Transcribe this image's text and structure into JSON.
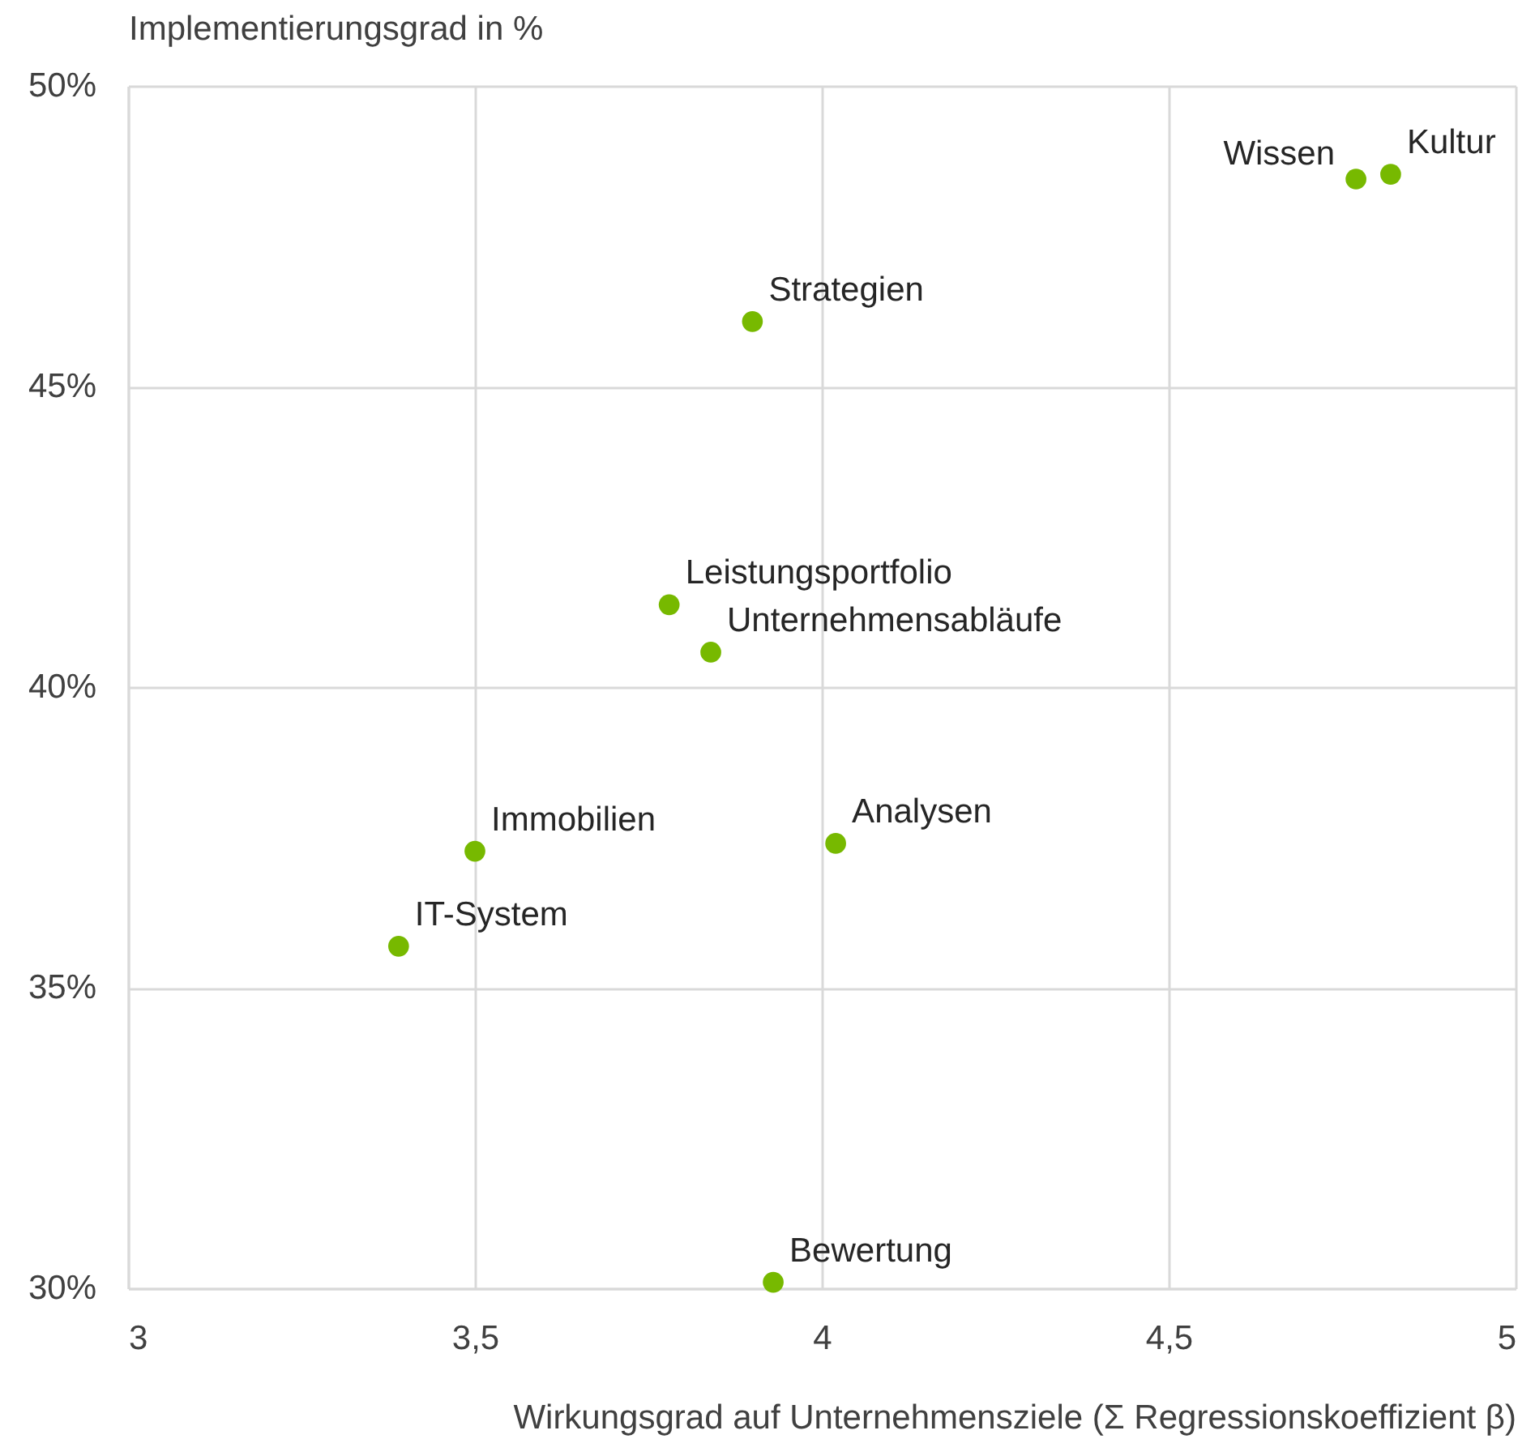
{
  "chart_data": {
    "type": "scatter",
    "xlabel": "Wirkungsgrad auf Unternehmensziele (Σ Regressionskoeffizient β)",
    "ylabel": "Implementierungsgrad in %",
    "x": [
      4.77,
      4.82,
      3.9,
      3.78,
      3.84,
      3.5,
      4.02,
      3.39,
      3.93
    ],
    "values": [
      48.45,
      48.53,
      46.08,
      41.37,
      40.58,
      37.27,
      37.4,
      35.69,
      30.1
    ],
    "color": "#77b900",
    "marker": "circle",
    "grid": true,
    "xlim": [
      3,
      5
    ],
    "xticks": [
      3,
      {
        "value": 3.5,
        "label": "3,5"
      },
      4,
      {
        "value": 4.5,
        "label": "4,5"
      },
      5
    ],
    "ylim": [
      30,
      50
    ],
    "yticks": [
      {
        "value": 30,
        "label": "30%"
      },
      {
        "value": 35,
        "label": "35%"
      },
      {
        "value": 40,
        "label": "40%"
      },
      {
        "value": 45,
        "label": "45%"
      },
      {
        "value": 50,
        "label": "50%"
      }
    ],
    "annotations": [
      {
        "text": "Wissen",
        "x": 4.77,
        "y": 48.45
      },
      {
        "text": "Kultur",
        "x": 4.82,
        "y": 48.53
      },
      {
        "text": "Strategien",
        "x": 3.9,
        "y": 46.08
      },
      {
        "text": "Leistungsportfolio",
        "x": 3.78,
        "y": 41.37
      },
      {
        "text": "Unternehmensabläufe",
        "x": 3.84,
        "y": 40.58
      },
      {
        "text": "Immobilien",
        "x": 3.5,
        "y": 37.27
      },
      {
        "text": "Analysen",
        "x": 4.02,
        "y": 37.4
      },
      {
        "text": "IT-System",
        "x": 3.39,
        "y": 35.69
      },
      {
        "text": "Bewertung",
        "x": 3.93,
        "y": 30.1
      }
    ]
  }
}
